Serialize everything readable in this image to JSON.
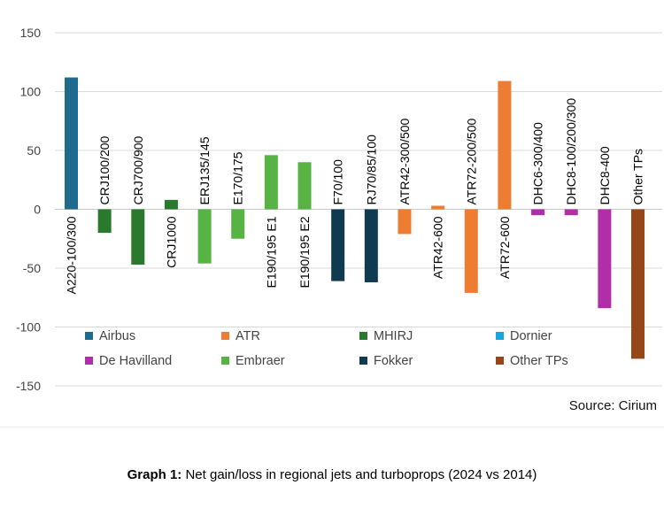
{
  "chart_data": {
    "type": "bar",
    "title": "",
    "xlabel": "",
    "ylabel": "",
    "ylim": [
      -150,
      150
    ],
    "yticks": [
      150,
      100,
      50,
      0,
      -50,
      -100,
      -150
    ],
    "grid": true,
    "categories": [
      "A220-100/300",
      "CRJ100/200",
      "CRJ700/900",
      "CRJ1000",
      "ERJ135/145",
      "E170/175",
      "E190/195 E1",
      "E190/195 E2",
      "F70/100",
      "RJ70/85/100",
      "ATR42-300/500",
      "ATR42-600",
      "ATR72-200/500",
      "ATR72-600",
      "DHC6-300/400",
      "DHC8-100/200/300",
      "DHC8-400",
      "Other TPs"
    ],
    "values": [
      112,
      -20,
      -47,
      8,
      -46,
      -25,
      46,
      40,
      -61,
      -62,
      -21,
      3,
      -71,
      109,
      -5,
      -5,
      -84,
      -127
    ],
    "groups": [
      "Airbus",
      "MHIRJ",
      "MHIRJ",
      "MHIRJ",
      "Embraer",
      "Embraer",
      "Embraer",
      "Embraer",
      "Fokker",
      "Fokker",
      "ATR",
      "ATR",
      "ATR",
      "ATR",
      "De Havilland",
      "De Havilland",
      "De Havilland",
      "Other TPs"
    ],
    "legend": [
      {
        "name": "Airbus",
        "color": "#1f6b8e"
      },
      {
        "name": "ATR",
        "color": "#ee7d34"
      },
      {
        "name": "MHIRJ",
        "color": "#2a7a2e"
      },
      {
        "name": "Dornier",
        "color": "#15a7de"
      },
      {
        "name": "De Havilland",
        "color": "#b02fa8"
      },
      {
        "name": "Embraer",
        "color": "#56b344"
      },
      {
        "name": "Fokker",
        "color": "#0f3a4f"
      },
      {
        "name": "Other TPs",
        "color": "#97461a"
      }
    ],
    "legend_position": "lower-left"
  },
  "source": "Source: Cirium",
  "caption": {
    "label": "Graph 1:",
    "text": " Net gain/loss in regional jets and turboprops (2024 vs 2014)"
  }
}
